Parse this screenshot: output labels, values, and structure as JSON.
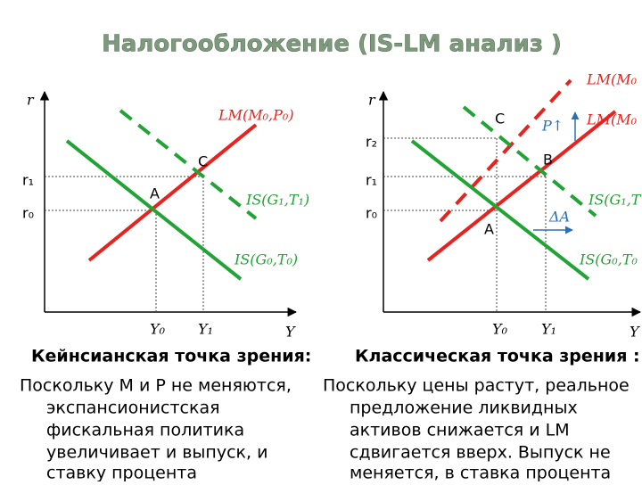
{
  "title": "Налогообложение (IS-LM анализ )",
  "left_diagram": {
    "axis_y": "r",
    "axis_x": "Y",
    "y_ticks": [
      "r₁",
      "r₀"
    ],
    "x_ticks": [
      "Y₀",
      "Y₁"
    ],
    "curves": {
      "lm": "LM(M₀,P₀)",
      "is1": "IS(G₁,T₁)",
      "is0": "IS(G₀,T₀)"
    },
    "points": [
      "A",
      "C"
    ]
  },
  "right_diagram": {
    "axis_y": "r",
    "axis_x": "Y",
    "y_ticks": [
      "r₂",
      "r₁",
      "r₀"
    ],
    "x_ticks": [
      "Y₀",
      "Y₁"
    ],
    "curves": {
      "lm1": "LM(M₀",
      "lm0": "LM(M₀",
      "is1": "IS(G₁,T",
      "is0": "IS(G₀,T₀"
    },
    "points": [
      "C",
      "B",
      "A"
    ],
    "annotations": [
      "P↑",
      "ΔA"
    ]
  },
  "text": {
    "left": {
      "heading": "Кейнсианская точка зрения:",
      "lines": [
        "Поскольку M и P не меняются,",
        "экспансионистская",
        "фискальная политика",
        "увеличивает и выпуск, и",
        "ставку процента"
      ]
    },
    "right": {
      "heading": "Классическая точка зрения :",
      "lines": [
        "Поскольку цены растут, реальное",
        "предложение ликвидных",
        "активов снижается и LM",
        "сдвигается вверх. Выпуск не",
        "меняется, в ставка процента"
      ]
    }
  }
}
